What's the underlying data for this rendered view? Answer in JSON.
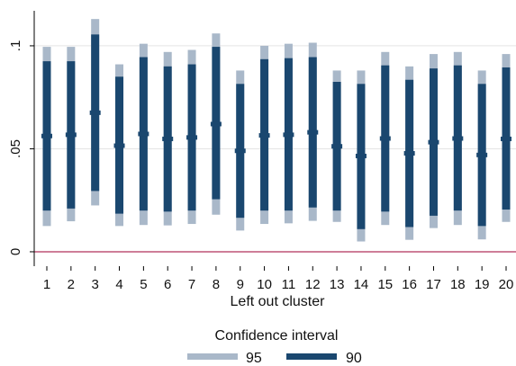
{
  "chart_data": {
    "type": "range-bar",
    "xlabel": "Left out cluster",
    "ylabel": "",
    "categories": [
      "1",
      "2",
      "3",
      "4",
      "5",
      "6",
      "7",
      "8",
      "9",
      "10",
      "11",
      "12",
      "13",
      "14",
      "15",
      "16",
      "17",
      "18",
      "19",
      "20"
    ],
    "yticks": [
      {
        "value": 0,
        "label": "0"
      },
      {
        "value": 0.05,
        "label": ".05"
      },
      {
        "value": 0.1,
        "label": ".1"
      }
    ],
    "ylim": [
      -0.007,
      0.117
    ],
    "reference_line": {
      "value": 0,
      "color": "#b0305a"
    },
    "grid": "horizontal",
    "legend": {
      "title": "Confidence interval",
      "position": "bottom",
      "items": [
        {
          "label": "95",
          "color": "#a9b8c9"
        },
        {
          "label": "90",
          "color": "#1a476f"
        }
      ]
    },
    "series": [
      {
        "name": "95",
        "low": [
          0.0125,
          0.0148,
          0.0225,
          0.0125,
          0.013,
          0.0128,
          0.0135,
          0.018,
          0.0103,
          0.0135,
          0.0138,
          0.015,
          0.0145,
          0.005,
          0.013,
          0.0058,
          0.0115,
          0.013,
          0.006,
          0.0145
        ],
        "high": [
          0.0995,
          0.0995,
          0.113,
          0.091,
          0.101,
          0.097,
          0.098,
          0.106,
          0.088,
          0.1,
          0.101,
          0.1015,
          0.088,
          0.088,
          0.097,
          0.09,
          0.096,
          0.097,
          0.088,
          0.096
        ]
      },
      {
        "name": "90",
        "low": [
          0.02,
          0.021,
          0.0295,
          0.0185,
          0.02,
          0.0195,
          0.02,
          0.0255,
          0.0165,
          0.02,
          0.02,
          0.0215,
          0.02,
          0.011,
          0.0195,
          0.012,
          0.0175,
          0.02,
          0.0125,
          0.0205
        ],
        "high": [
          0.0925,
          0.0925,
          0.1055,
          0.085,
          0.0945,
          0.09,
          0.091,
          0.0995,
          0.0815,
          0.0935,
          0.094,
          0.0945,
          0.0825,
          0.0815,
          0.0905,
          0.0835,
          0.089,
          0.0905,
          0.0815,
          0.0895
        ]
      }
    ],
    "estimates": [
      0.0562,
      0.0568,
      0.0675,
      0.0515,
      0.0572,
      0.0548,
      0.0555,
      0.062,
      0.049,
      0.0565,
      0.0568,
      0.058,
      0.0512,
      0.0465,
      0.055,
      0.0478,
      0.0532,
      0.055,
      0.047,
      0.0548
    ],
    "estimate_color": "#1a476f"
  }
}
